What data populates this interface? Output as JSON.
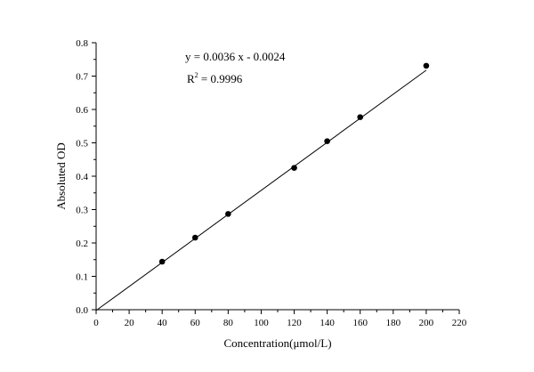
{
  "chart_data": {
    "type": "scatter",
    "xlabel": "Concentration(μmol/L)",
    "ylabel": "Absoluted OD",
    "xlim": [
      0,
      220
    ],
    "ylim": [
      0,
      0.8
    ],
    "xticks": [
      "0",
      "20",
      "40",
      "60",
      "80",
      "100",
      "120",
      "140",
      "160",
      "180",
      "200",
      "220"
    ],
    "yticks": [
      "0.0",
      "0.1",
      "0.2",
      "0.3",
      "0.4",
      "0.5",
      "0.6",
      "0.7",
      "0.8"
    ],
    "grid": false,
    "legend": "none",
    "points": {
      "x": [
        40,
        60,
        80,
        120,
        140,
        160,
        200
      ],
      "y": [
        0.144,
        0.216,
        0.287,
        0.425,
        0.505,
        0.577,
        0.731
      ]
    },
    "fit": {
      "slope": 0.0036,
      "intercept": -0.0024,
      "x_range": [
        0,
        200
      ],
      "equation_text": "y = 0.0036 x - 0.0024",
      "r2_prefix": "R",
      "r2_sup": "2",
      "r2_value": " = 0.9996"
    }
  }
}
